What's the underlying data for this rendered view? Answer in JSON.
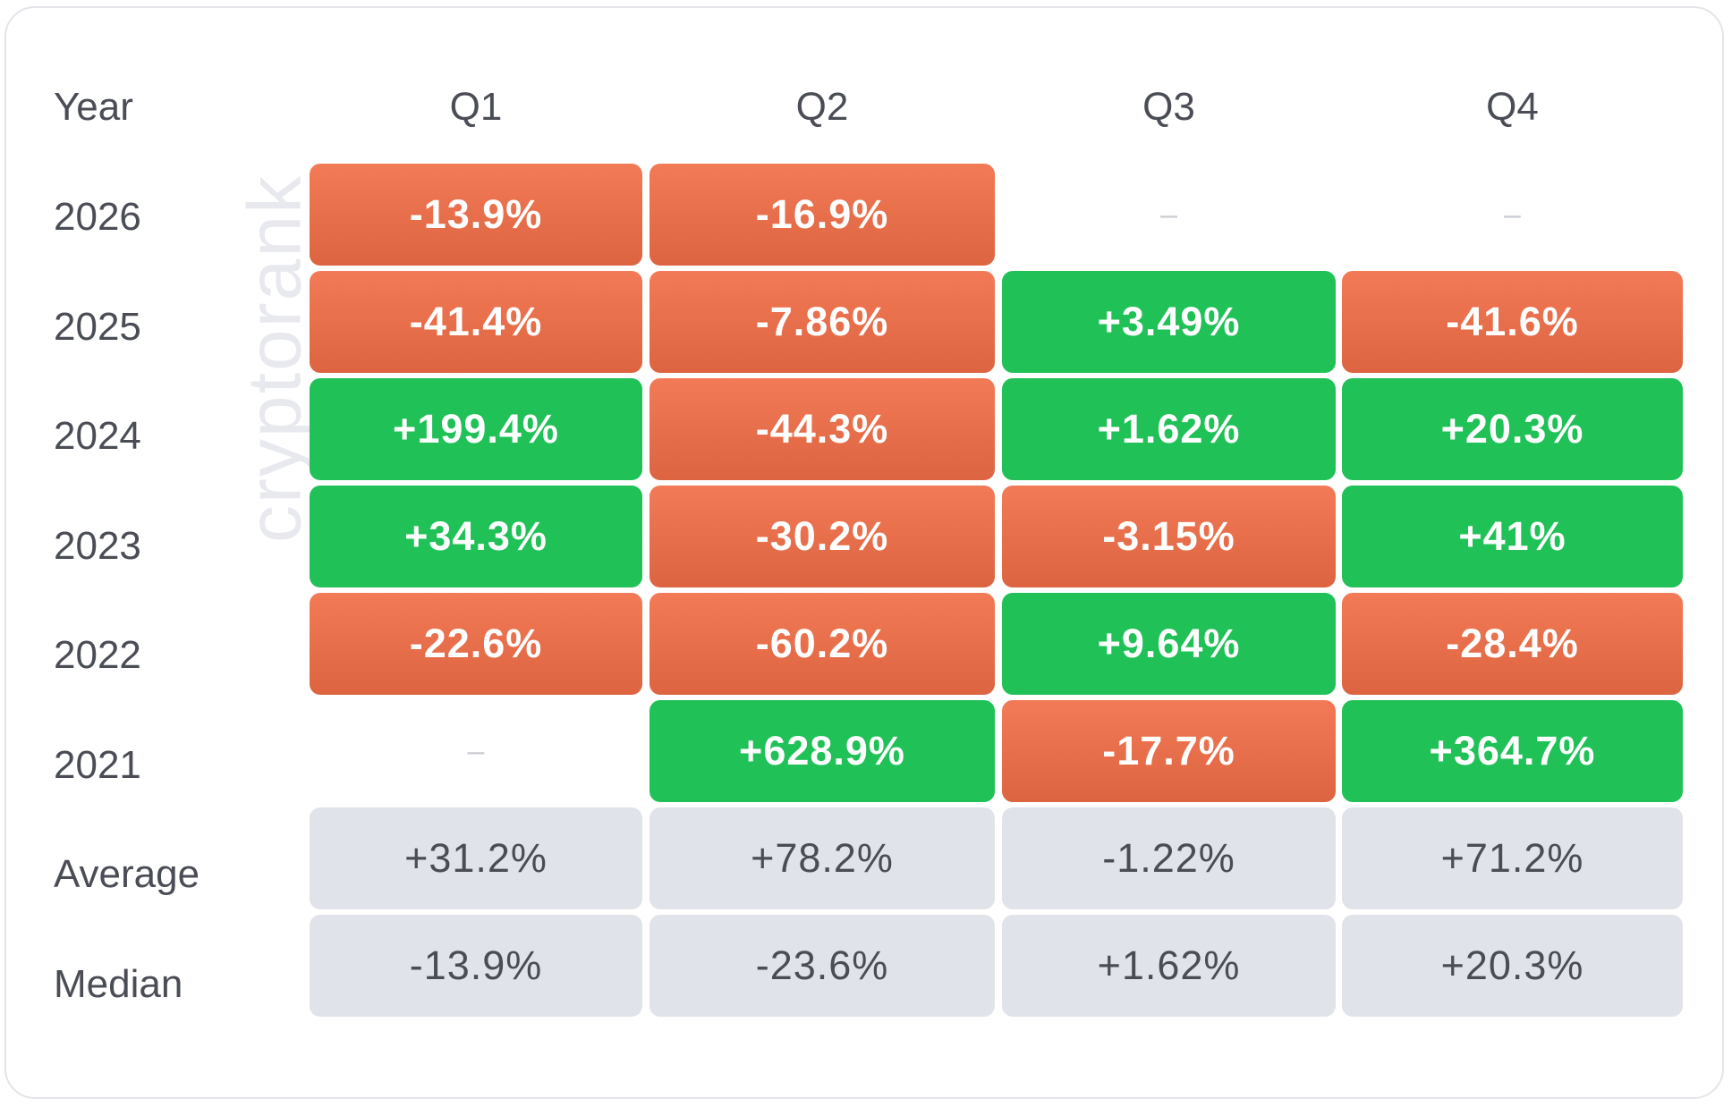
{
  "watermark": "cryptorank",
  "colors": {
    "up": "#20c157",
    "down": "#e9704c",
    "neutral": "#e1e3ea"
  },
  "table": {
    "header": [
      "Year",
      "Q1",
      "Q2",
      "Q3",
      "Q4"
    ],
    "rows": [
      {
        "label": "2026",
        "cells": [
          "-13.9%",
          "-16.9%",
          "–",
          "–"
        ]
      },
      {
        "label": "2025",
        "cells": [
          "-41.4%",
          "-7.86%",
          "+3.49%",
          "-41.6%"
        ]
      },
      {
        "label": "2024",
        "cells": [
          "+199.4%",
          "-44.3%",
          "+1.62%",
          "+20.3%"
        ]
      },
      {
        "label": "2023",
        "cells": [
          "+34.3%",
          "-30.2%",
          "-3.15%",
          "+41%"
        ]
      },
      {
        "label": "2022",
        "cells": [
          "-22.6%",
          "-60.2%",
          "+9.64%",
          "-28.4%"
        ]
      },
      {
        "label": "2021",
        "cells": [
          "–",
          "+628.9%",
          "-17.7%",
          "+364.7%"
        ]
      }
    ],
    "summary_rows": [
      {
        "label": "Average",
        "cells": [
          "+31.2%",
          "+78.2%",
          "-1.22%",
          "+71.2%"
        ]
      },
      {
        "label": "Median",
        "cells": [
          "-13.9%",
          "-23.6%",
          "+1.62%",
          "+20.3%"
        ]
      }
    ]
  }
}
